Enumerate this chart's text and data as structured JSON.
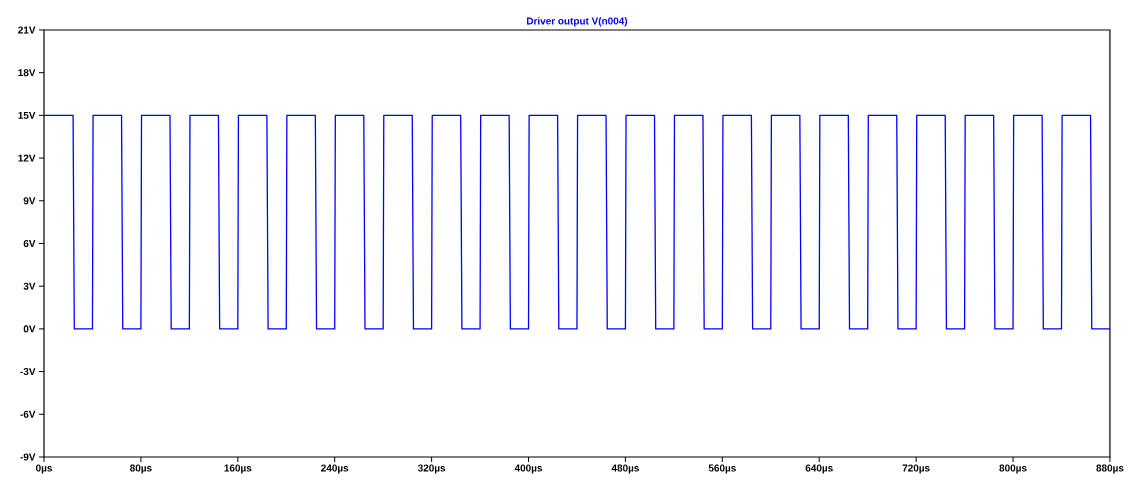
{
  "chart_data": {
    "type": "line",
    "title": "Driver output  V(n004)",
    "x": [
      0,
      24,
      25,
      40,
      40.5,
      64,
      65,
      80,
      80.5,
      104,
      105,
      120,
      120.5,
      144,
      145,
      160,
      160.5,
      184,
      185,
      200,
      200.5,
      224,
      225,
      240,
      240.5,
      264,
      265,
      280,
      280.5,
      304,
      305,
      320,
      320.5,
      344,
      345,
      360,
      360.5,
      384,
      385,
      400,
      400.5,
      424,
      425,
      440,
      440.5,
      464,
      465,
      480,
      480.5,
      504,
      505,
      520,
      520.5,
      544,
      545,
      560,
      560.5,
      584,
      585,
      600,
      600.5,
      624,
      625,
      640,
      640.5,
      664,
      665,
      680,
      680.5,
      704,
      705,
      720,
      720.5,
      744,
      745,
      760,
      760.5,
      784,
      785,
      800,
      800.5,
      824,
      825,
      840,
      840.5,
      864,
      865,
      880
    ],
    "series": [
      {
        "color": "#0000ff",
        "values": [
          15,
          15,
          0,
          0,
          15,
          15,
          0,
          0,
          15,
          15,
          0,
          0,
          15,
          15,
          0,
          0,
          15,
          15,
          0,
          0,
          15,
          15,
          0,
          0,
          15,
          15,
          0,
          0,
          15,
          15,
          0,
          0,
          15,
          15,
          0,
          0,
          15,
          15,
          0,
          0,
          15,
          15,
          0,
          0,
          15,
          15,
          0,
          0,
          15,
          15,
          0,
          0,
          15,
          15,
          0,
          0,
          15,
          15,
          0,
          0,
          15,
          15,
          0,
          0,
          15,
          15,
          0,
          0,
          15,
          15,
          0,
          0,
          15,
          15,
          0,
          0,
          15,
          15,
          0,
          0,
          15,
          15,
          0,
          0,
          15,
          15,
          0,
          0
        ]
      }
    ],
    "xlim": [
      0,
      880
    ],
    "xticks": [
      {
        "value": 0,
        "label": "0µs"
      },
      {
        "value": 80,
        "label": "80µs"
      },
      {
        "value": 160,
        "label": "160µs"
      },
      {
        "value": 240,
        "label": "240µs"
      },
      {
        "value": 320,
        "label": "320µs"
      },
      {
        "value": 400,
        "label": "400µs"
      },
      {
        "value": 480,
        "label": "480µs"
      },
      {
        "value": 560,
        "label": "560µs"
      },
      {
        "value": 640,
        "label": "640µs"
      },
      {
        "value": 720,
        "label": "720µs"
      },
      {
        "value": 800,
        "label": "800µs"
      },
      {
        "value": 880,
        "label": "880µs"
      }
    ],
    "ylim": [
      -9,
      21
    ],
    "yticks": [
      {
        "value": -9,
        "label": "-9V"
      },
      {
        "value": -6,
        "label": "-6V"
      },
      {
        "value": -3,
        "label": "-3V"
      },
      {
        "value": 0,
        "label": "0V"
      },
      {
        "value": 3,
        "label": "3V"
      },
      {
        "value": 6,
        "label": "6V"
      },
      {
        "value": 9,
        "label": "9V"
      },
      {
        "value": 12,
        "label": "12V"
      },
      {
        "value": 15,
        "label": "15V"
      },
      {
        "value": 18,
        "label": "18V"
      },
      {
        "value": 21,
        "label": "21V"
      }
    ],
    "grid": false,
    "marker": "none",
    "line_style": "solid"
  }
}
